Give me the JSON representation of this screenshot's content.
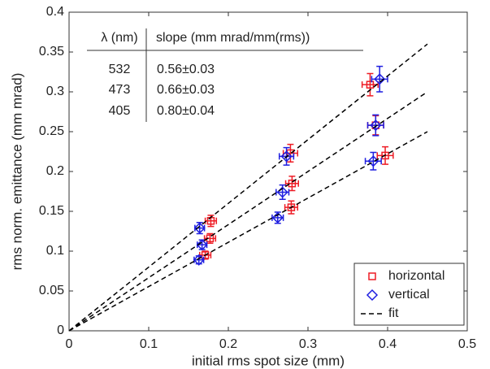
{
  "chart_data": {
    "type": "scatter",
    "xlabel": "initial rms spot size (mm)",
    "ylabel": "rms norm. emittance (mm mrad)",
    "xlim": [
      0,
      0.5
    ],
    "xticks": [
      0,
      0.1,
      0.2,
      0.3,
      0.4,
      0.5
    ],
    "ylim": [
      0,
      0.4
    ],
    "yticks": [
      0,
      0.05,
      0.1,
      0.15,
      0.2,
      0.25,
      0.3,
      0.35,
      0.4
    ],
    "legend": "lower right",
    "series": [
      {
        "name": "horizontal",
        "color": "#ee1c25",
        "marker": "square",
        "x": [
          0.171,
          0.177,
          0.178,
          0.279,
          0.28,
          0.278,
          0.378,
          0.385,
          0.397
        ],
        "values": [
          0.095,
          0.116,
          0.138,
          0.155,
          0.185,
          0.223,
          0.309,
          0.258,
          0.22
        ],
        "xerr": [
          0.007,
          0.007,
          0.007,
          0.008,
          0.008,
          0.009,
          0.01,
          0.01,
          0.01
        ],
        "yerr": [
          0.005,
          0.006,
          0.007,
          0.008,
          0.009,
          0.011,
          0.014,
          0.012,
          0.011
        ]
      },
      {
        "name": "vertical",
        "color": "#1f1fe0",
        "marker": "diamond",
        "x": [
          0.163,
          0.167,
          0.164,
          0.262,
          0.268,
          0.273,
          0.39,
          0.385,
          0.382
        ],
        "values": [
          0.089,
          0.108,
          0.129,
          0.142,
          0.174,
          0.219,
          0.316,
          0.258,
          0.213
        ],
        "xerr": [
          0.006,
          0.006,
          0.006,
          0.007,
          0.008,
          0.009,
          0.01,
          0.01,
          0.01
        ],
        "yerr": [
          0.005,
          0.006,
          0.007,
          0.007,
          0.009,
          0.011,
          0.016,
          0.013,
          0.011
        ]
      },
      {
        "name": "fit",
        "color": "#000000",
        "marker": "dashed-line",
        "x": [
          0,
          0.45,
          null,
          0,
          0.45,
          null,
          0,
          0.45
        ],
        "values": [
          0,
          0.25,
          null,
          0,
          0.3,
          null,
          0,
          0.36
        ]
      }
    ],
    "table": {
      "header": [
        "λ (nm)",
        "slope (mm mrad/mm(rms))"
      ],
      "rows": [
        [
          "532",
          "0.56±0.03"
        ],
        [
          "473",
          "0.66±0.03"
        ],
        [
          "405",
          "0.80±0.04"
        ]
      ]
    }
  }
}
